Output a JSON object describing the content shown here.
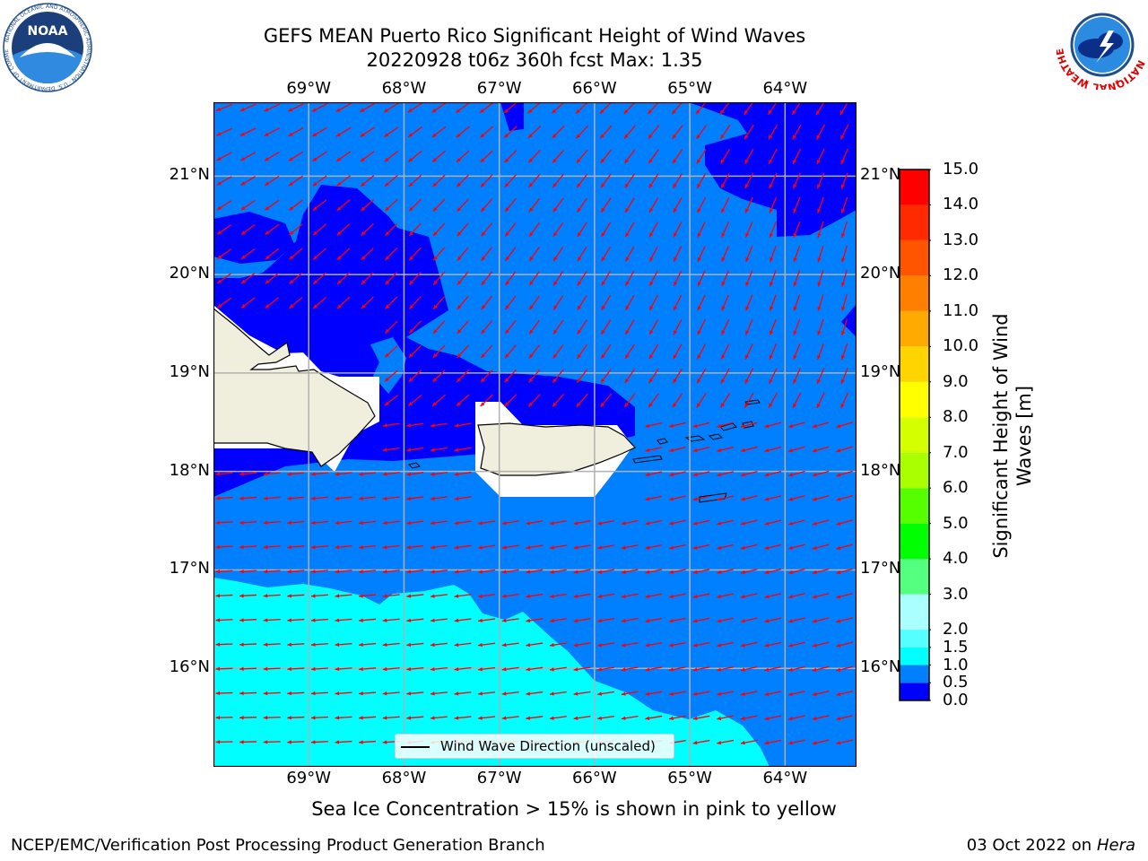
{
  "header": {
    "title_line1": "GEFS MEAN Puerto Rico Significant Height of Wind Waves",
    "title_line2": "20220928 t06z 360h fcst   Max: 1.35"
  },
  "footer": {
    "note": "Sea Ice Concentration > 15% is shown in pink to yellow",
    "credit": "NCEP/EMC/Verification Post Processing Product Generation Branch",
    "date_prefix": "03 Oct 2022 on ",
    "machine": "Hera"
  },
  "logos": {
    "noaa_text": "NOAA",
    "noaa_ring": "NATIONAL OCEANIC AND ATMOSPHERIC ADMINISTRATION · U.S. DEPARTMENT OF COMMERCE",
    "nws_ring": "NATIONAL WEATHER SERVICE"
  },
  "map": {
    "lon_range": [
      -70.0,
      -63.25
    ],
    "lat_range": [
      15.0,
      21.75
    ],
    "lon_ticks": [
      -69,
      -68,
      -67,
      -66,
      -65,
      -64
    ],
    "lat_ticks": [
      16,
      17,
      18,
      19,
      20,
      21
    ],
    "lon_tick_labels": [
      "69°W",
      "68°W",
      "67°W",
      "66°W",
      "65°W",
      "64°W"
    ],
    "lat_tick_labels": [
      "16°N",
      "17°N",
      "18°N",
      "19°N",
      "20°N",
      "21°N"
    ],
    "grid": true,
    "legend": {
      "label": "Wind Wave Direction (unscaled)",
      "placement": "bottom-center"
    },
    "colors": {
      "band_0_0.5": "#0000ff",
      "band_0.5_1.0": "#0080ff",
      "band_1.0_1.5": "#00ffff",
      "land": "#f0eedc",
      "masked": "#ffffff",
      "arrow": "#ff0000",
      "grid": "#b0b0b0"
    }
  },
  "colorbar": {
    "label": "Significant Height of Wind Waves [m]",
    "label_line1": "Significant Height of Wind",
    "label_line2": "Waves [m]",
    "levels": [
      "0.0",
      "0.5",
      "1.0",
      "1.5",
      "2.0",
      "3.0",
      "4.0",
      "5.0",
      "6.0",
      "7.0",
      "8.0",
      "9.0",
      "10.0",
      "11.0",
      "12.0",
      "13.0",
      "14.0",
      "15.0"
    ],
    "colors": [
      "#0000ff",
      "#0080ff",
      "#00ffff",
      "#55ffff",
      "#aaffff",
      "#55ff80",
      "#00ff00",
      "#55ff00",
      "#aaff00",
      "#d4ff00",
      "#ffff00",
      "#ffd400",
      "#ffaa00",
      "#ff8000",
      "#ff5500",
      "#ff2a00",
      "#ff0000"
    ]
  }
}
